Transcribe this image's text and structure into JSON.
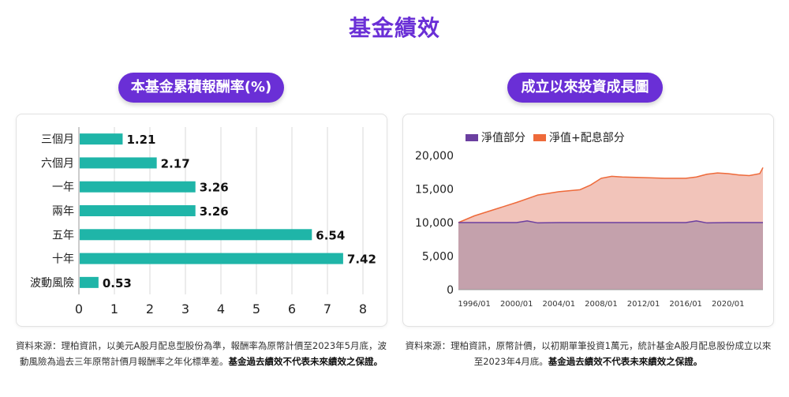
{
  "page": {
    "title": "基金績效",
    "left_heading": "本基金累積報酬率(%)",
    "right_heading": "成立以來投資成長圖",
    "left_note_main": "資料來源：理柏資訊，以美元A股月配息型股份為準，報酬率為原幣計價至2023年5月底，波動風險為過去三年原幣計價月報酬率之年化標準差。",
    "left_note_bold": "基金過去績效不代表未來績效之保證。",
    "right_note_main": "資料來源：理柏資訊，原幣計價，以初期單筆投資1萬元，統計基金A股月配息股份成立以來至2023年4月底。",
    "right_note_bold": "基金過去績效不代表未來績效之保證。"
  },
  "colors": {
    "brand": "#6a2fd6",
    "bar": "#1fb5a8",
    "nav_line": "#6b3fa0",
    "nav_fill": "#c4a1ac",
    "total_line": "#ee6a3a",
    "total_fill": "#f2c4ba"
  },
  "chart_data": [
    {
      "type": "bar",
      "orientation": "horizontal",
      "categories": [
        "三個月",
        "六個月",
        "一年",
        "兩年",
        "五年",
        "十年",
        "波動風險"
      ],
      "values": [
        1.21,
        2.17,
        3.26,
        3.26,
        6.54,
        7.42,
        0.53
      ],
      "value_labels": [
        "1.21",
        "2.17",
        "3.26",
        "3.26",
        "6.54",
        "7.42",
        "0.53"
      ],
      "xlim": [
        0,
        8
      ],
      "xticks": [
        "0",
        "1",
        "2",
        "3",
        "4",
        "5",
        "6",
        "7",
        "8"
      ],
      "grid": "vertical"
    },
    {
      "type": "area",
      "legend": [
        "淨值部分",
        "淨值+配息部分"
      ],
      "legend_position": "top",
      "xticks": [
        "1996/01",
        "2000/01",
        "2004/01",
        "2008/01",
        "2012/01",
        "2016/01",
        "2020/01"
      ],
      "xlim": [
        1994.5,
        2023.3
      ],
      "ylim": [
        0,
        20000
      ],
      "yticks": [
        "20,000",
        "15,000",
        "10,000",
        "5,000",
        "0"
      ],
      "series": [
        {
          "name": "淨值部分",
          "x": [
            1994.5,
            1997,
            2000,
            2001,
            2002,
            2004,
            2006,
            2008,
            2010,
            2012,
            2014,
            2016,
            2017,
            2018,
            2020,
            2022,
            2023.3
          ],
          "values": [
            10000,
            10000,
            10000,
            10250,
            9950,
            10000,
            10000,
            10000,
            10000,
            10000,
            10000,
            10000,
            10250,
            9950,
            10000,
            10000,
            10000
          ]
        },
        {
          "name": "淨值+配息部分",
          "x": [
            1994.5,
            1996,
            1998,
            2000,
            2002,
            2004,
            2006,
            2007,
            2008,
            2009,
            2010,
            2012,
            2014,
            2016,
            2017,
            2018,
            2019,
            2020,
            2021,
            2022,
            2023,
            2023.3
          ],
          "values": [
            10000,
            11000,
            12000,
            13000,
            14100,
            14600,
            14900,
            15600,
            16600,
            16900,
            16800,
            16700,
            16600,
            16600,
            16800,
            17200,
            17400,
            17300,
            17100,
            17000,
            17300,
            18200
          ]
        }
      ]
    }
  ]
}
